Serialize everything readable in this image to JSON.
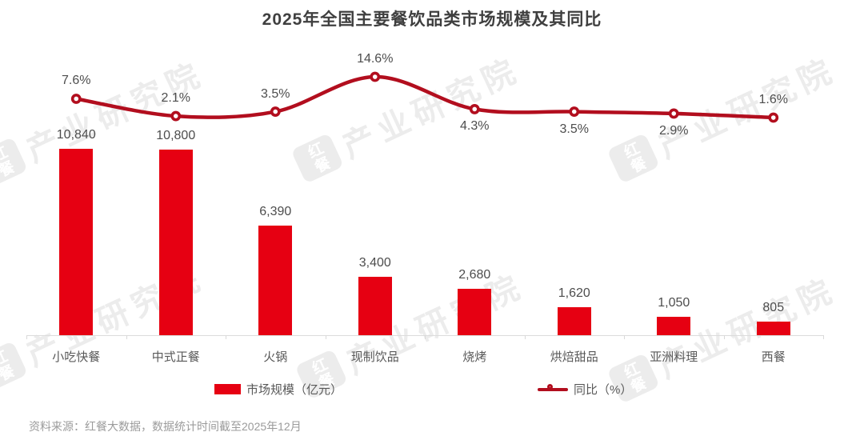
{
  "title": "2025年全国主要餐饮品类市场规模及其同比",
  "watermark": {
    "logo": "红餐",
    "text": "产业研究院"
  },
  "legend": {
    "bar_label": "市场规模（亿元）",
    "line_label": "同比（%）"
  },
  "source_note": "资料来源：红餐大数据，数据统计时间截至2025年12月",
  "colors": {
    "bar_red": "#e60012",
    "line_red": "#b20e1e",
    "label_gray": "#4d4d4d",
    "axis_gray": "#dcdcdc",
    "title_gray": "#3f3f3f",
    "footer_gray": "#9b9b9b",
    "watermark_gray": "#ececec"
  },
  "chart_data": {
    "type": "bar+line",
    "categories": [
      "小吃快餐",
      "中式正餐",
      "火锅",
      "现制饮品",
      "烧烤",
      "烘焙甜品",
      "亚洲料理",
      "西餐"
    ],
    "series": [
      {
        "name": "市场规模（亿元）",
        "type": "bar",
        "values": [
          10840,
          10800,
          6390,
          3400,
          2680,
          1620,
          1050,
          805
        ],
        "labels": [
          "10,840",
          "10,800",
          "6,390",
          "3,400",
          "2,680",
          "1,620",
          "1,050",
          "805"
        ]
      },
      {
        "name": "同比（%）",
        "type": "line",
        "values": [
          7.6,
          2.1,
          3.5,
          14.6,
          4.3,
          3.5,
          2.9,
          1.6
        ],
        "labels": [
          "7.6%",
          "2.1%",
          "3.5%",
          "14.6%",
          "4.3%",
          "3.5%",
          "2.9%",
          "1.6%"
        ],
        "label_position": [
          "above",
          "above",
          "above",
          "above",
          "below",
          "below",
          "below",
          "above"
        ]
      }
    ],
    "title": "2025年全国主要餐饮品类市场规模及其同比",
    "xlabel": "",
    "ylabel_left": "市场规模（亿元）",
    "ylabel_right": "同比（%）",
    "grid": false,
    "legend_position": "bottom",
    "value_labels_shown": true,
    "axis_ticks_shown": false
  }
}
